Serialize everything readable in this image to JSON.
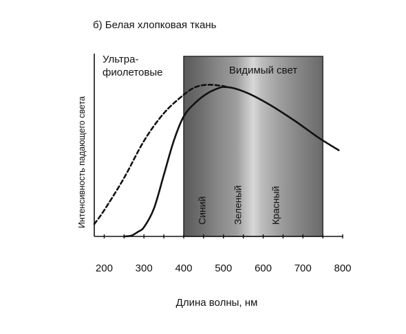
{
  "chart_data": {
    "type": "line",
    "title": "б) Белая хлопковая ткань",
    "xlabel": "Длина волны, нм",
    "ylabel": "Интенсивность падающего света",
    "xlim": [
      175,
      800
    ],
    "ylim": [
      0,
      100
    ],
    "x_ticks": [
      200,
      300,
      400,
      500,
      600,
      700,
      800
    ],
    "grid": false,
    "legend": "none",
    "regions": [
      {
        "name": "Видимый свет",
        "x_start": 400,
        "x_end": 750
      }
    ],
    "region_labels": [
      {
        "text": "Ультра-\nфиолетовые",
        "lines": [
          "Ультра-",
          "фиолетовые"
        ],
        "x": 250
      },
      {
        "text": "Видимый свет",
        "x": 600
      }
    ],
    "band_labels": [
      {
        "text": "Синий",
        "x": 455
      },
      {
        "text": "Зеленый",
        "x": 545
      },
      {
        "text": "Красный",
        "x": 640
      }
    ],
    "series": [
      {
        "style": "dashed",
        "x": [
          175,
          200,
          250,
          300,
          350,
          400,
          430,
          460,
          490,
          510
        ],
        "y": [
          8,
          17,
          38,
          62,
          80,
          92,
          97,
          98.5,
          98,
          97
        ]
      },
      {
        "style": "solid",
        "x": [
          250,
          268,
          285,
          300,
          325,
          350,
          375,
          400,
          430,
          460,
          490,
          505,
          530,
          570,
          620,
          680,
          740,
          790
        ],
        "y": [
          0,
          0.5,
          3,
          6,
          18,
          40,
          62,
          78,
          87,
          93,
          96.5,
          97,
          96,
          92,
          85,
          75,
          64,
          56
        ]
      }
    ]
  }
}
